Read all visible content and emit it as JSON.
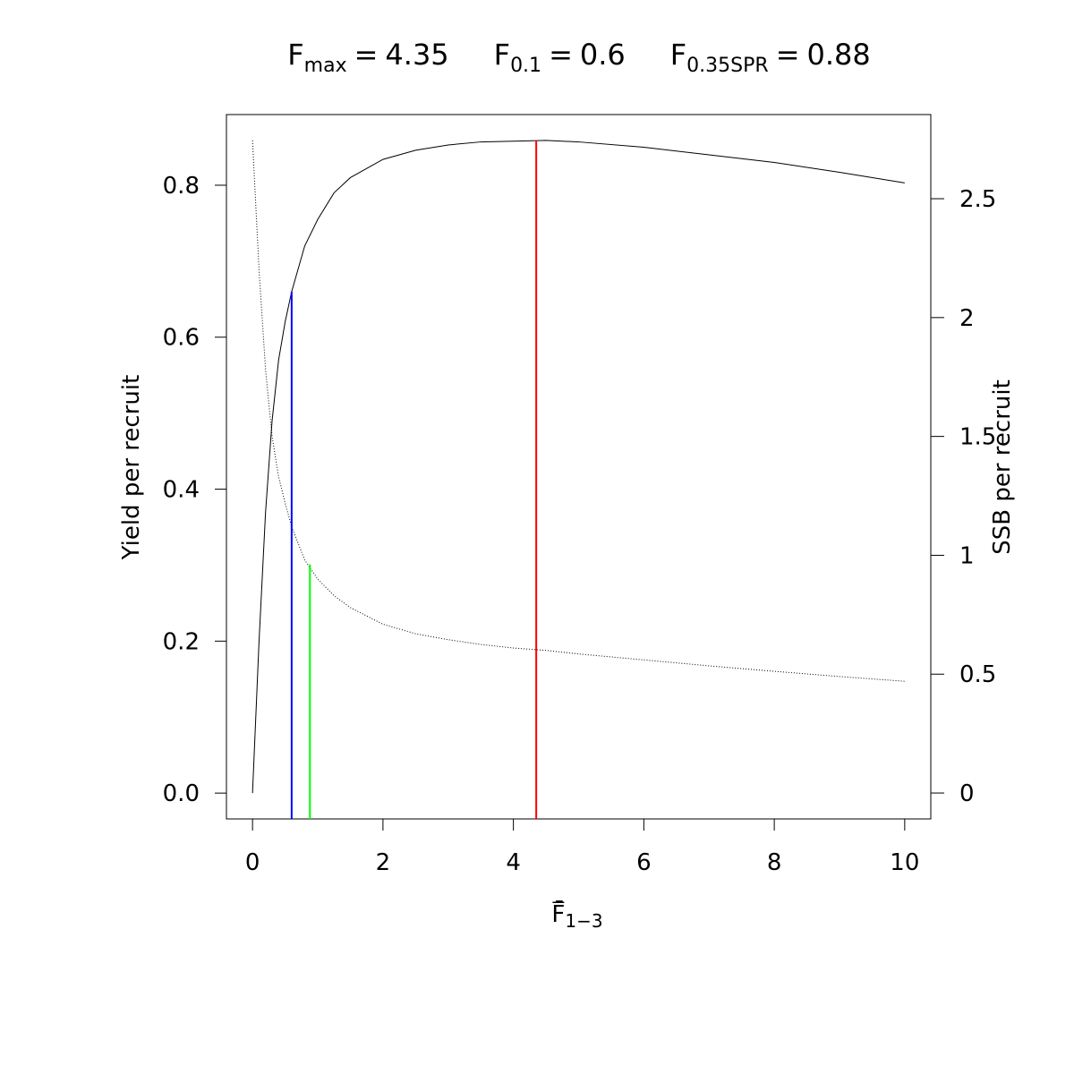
{
  "chart_data": {
    "type": "line",
    "reference_lines": [
      {
        "symbol": "F",
        "subscript": "max",
        "sign": "=",
        "value": 4.35,
        "color": "#ff0000",
        "top": 0.859,
        "axis": "y"
      },
      {
        "symbol": "F",
        "subscript": "0.1",
        "sign": "=",
        "value": 0.6,
        "color": "#0000ff",
        "top": 0.66,
        "axis": "y"
      },
      {
        "symbol": "F",
        "subscript": "0.35SPR",
        "sign": "=",
        "value": 0.88,
        "color": "#00ff00",
        "top": 0.961,
        "axis": "y2"
      }
    ],
    "xlabel": "F̄",
    "xlabel_sub": "1−3",
    "ylabel": "Yield per recruit",
    "y2label": "SSB per recruit",
    "x": [
      0,
      0.1,
      0.2,
      0.3,
      0.4,
      0.5,
      0.6,
      0.8,
      1,
      1.25,
      1.5,
      2,
      2.5,
      3,
      3.5,
      4,
      4.5,
      5,
      6,
      7,
      8,
      9,
      10
    ],
    "series": [
      {
        "color": "#000000",
        "dash": "none",
        "values": [
          0,
          0.2,
          0.37,
          0.49,
          0.57,
          0.62,
          0.66,
          0.72,
          0.755,
          0.79,
          0.81,
          0.834,
          0.846,
          0.853,
          0.857,
          0.858,
          0.859,
          0.857,
          0.85,
          0.84,
          0.83,
          0.817,
          0.803
        ]
      },
      {
        "color": "#000000",
        "dash": "1,2",
        "axis": "y2",
        "values": [
          2.745,
          2.2,
          1.78,
          1.5,
          1.33,
          1.22,
          1.12,
          0.98,
          0.9,
          0.83,
          0.78,
          0.71,
          0.67,
          0.645,
          0.625,
          0.61,
          0.6,
          0.585,
          0.56,
          0.535,
          0.512,
          0.49,
          0.47
        ]
      }
    ],
    "xlim": [
      -0.4,
      10.4
    ],
    "xticks": [
      0,
      2,
      4,
      6,
      8,
      10
    ],
    "ylim": [
      -0.034,
      0.893
    ],
    "yticks": [
      {
        "value": 0,
        "label": "0.0"
      },
      0.2,
      0.4,
      0.6,
      0.8
    ],
    "y2lim": [
      -0.109,
      2.854
    ],
    "y2ticks": [
      0,
      0.5,
      1,
      1.5,
      2,
      2.5
    ]
  }
}
